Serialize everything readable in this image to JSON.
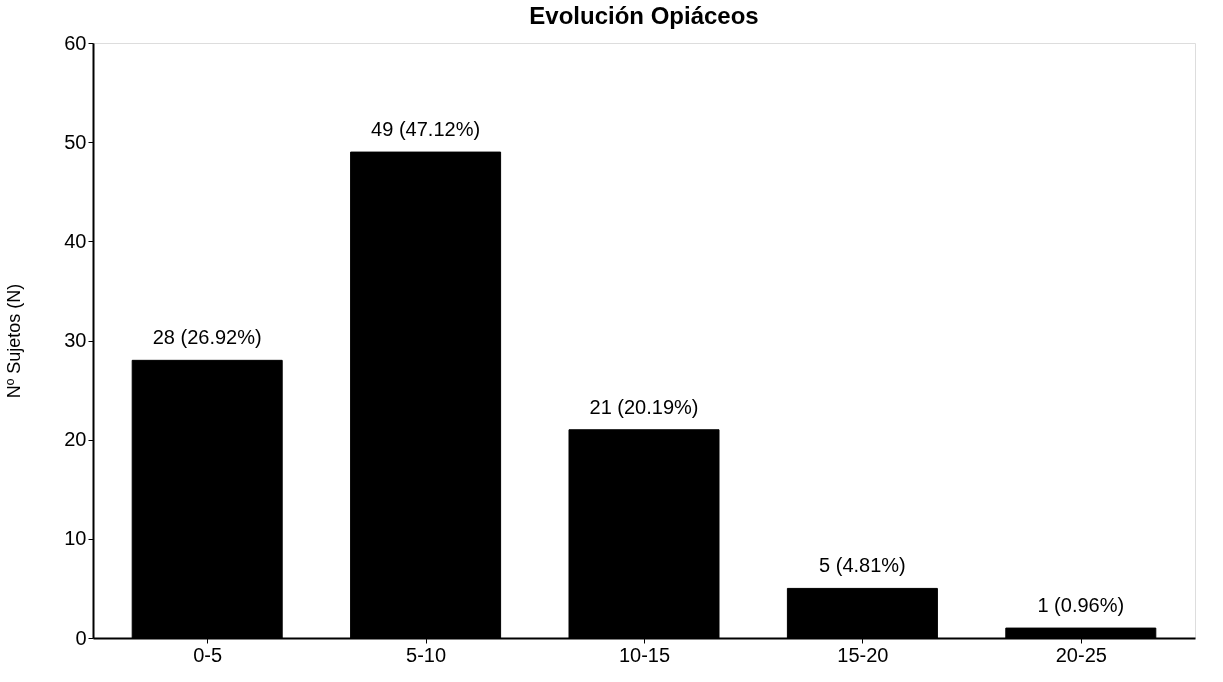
{
  "chart_data": {
    "type": "bar",
    "title": "Evolución   Opiáceos",
    "ylabel": "Nº Sujetos (N)",
    "categories": [
      "0-5",
      "5-10",
      "10-15",
      "15-20",
      "20-25"
    ],
    "values": [
      28,
      49,
      21,
      5,
      1
    ],
    "value_labels": [
      "28 (26.92%)",
      "49 (47.12%)",
      "21 (20.19%)",
      "5 (4.81%)",
      "1 (0.96%)"
    ],
    "color": "#000000",
    "ylim": [
      0,
      60
    ],
    "yticks": [
      0,
      10,
      20,
      30,
      40,
      50,
      60
    ],
    "grid": false
  }
}
